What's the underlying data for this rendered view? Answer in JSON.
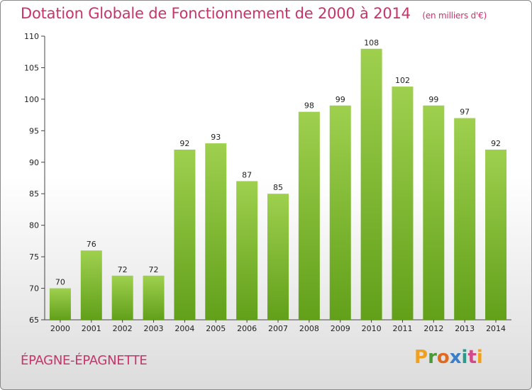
{
  "header": {
    "title": "Dotation Globale de Fonctionnement de 2000 à 2014",
    "unit": "(en milliers d'€)"
  },
  "commune": "ÉPAGNE-ÉPAGNETTE",
  "brand": {
    "letters": [
      "P",
      "r",
      "o",
      "x",
      "i",
      "t",
      "i"
    ],
    "colors": [
      "#f0a020",
      "#4a9a3a",
      "#e06a20",
      "#3a7fc8",
      "#2a9a8a",
      "#d04a8a",
      "#f0a020"
    ]
  },
  "colors": {
    "accent": "#c8336b",
    "bar_light": "#9ed04e",
    "bar_dark": "#62a01a"
  },
  "chart_data": {
    "type": "bar",
    "title": "Dotation Globale de Fonctionnement de 2000 à 2014",
    "subtitle": "(en milliers d'€)",
    "categories": [
      "2000",
      "2001",
      "2002",
      "2003",
      "2004",
      "2005",
      "2006",
      "2007",
      "2008",
      "2009",
      "2010",
      "2011",
      "2012",
      "2013",
      "2014"
    ],
    "values": [
      70,
      76,
      72,
      72,
      92,
      93,
      87,
      85,
      98,
      99,
      108,
      102,
      99,
      97,
      92
    ],
    "ylim": [
      65,
      110
    ],
    "yticks": [
      65,
      70,
      75,
      80,
      85,
      90,
      95,
      100,
      105,
      110
    ],
    "grid": false,
    "legend": "none"
  }
}
